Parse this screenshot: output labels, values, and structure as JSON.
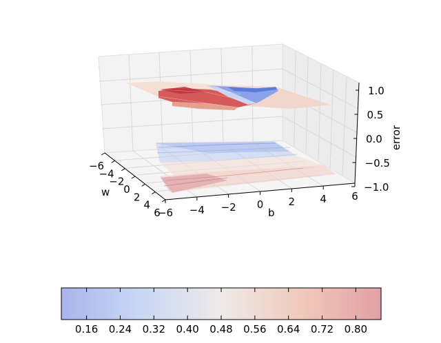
{
  "chart_data": {
    "type": "surface3d",
    "projection": "3d",
    "xlabel": "w",
    "ylabel": "b",
    "zlabel": "error",
    "xlim": [
      -6,
      6
    ],
    "ylim": [
      -6,
      6
    ],
    "zlim": [
      -1.0,
      1.0
    ],
    "x_ticks": [
      "−6",
      "−4",
      "−2",
      "0",
      "2",
      "4",
      "6"
    ],
    "y_ticks": [
      "−6",
      "−4",
      "−2",
      "0",
      "2",
      "4",
      "6"
    ],
    "z_ticks": [
      "1.0",
      "0.5",
      "0.0",
      "−0.5",
      "−1.0"
    ],
    "colormap": "coolwarm",
    "colorbar": {
      "orientation": "horizontal",
      "range": [
        0.1,
        0.86
      ],
      "ticks": [
        "0.16",
        "0.24",
        "0.32",
        "0.40",
        "0.48",
        "0.56",
        "0.64",
        "0.72",
        "0.80"
      ]
    },
    "surface": {
      "w_grid": [
        -6,
        -4,
        -2,
        0,
        2,
        4,
        6
      ],
      "b_grid": [
        -6,
        -4,
        -2,
        0,
        2,
        4,
        6
      ],
      "error": [
        [
          0.4,
          0.38,
          0.3,
          0.18,
          0.15,
          0.14,
          0.14
        ],
        [
          0.42,
          0.42,
          0.36,
          0.25,
          0.18,
          0.15,
          0.15
        ],
        [
          0.46,
          0.48,
          0.46,
          0.4,
          0.3,
          0.22,
          0.2
        ],
        [
          0.5,
          0.52,
          0.52,
          0.5,
          0.46,
          0.42,
          0.42
        ],
        [
          0.52,
          0.58,
          0.62,
          0.58,
          0.52,
          0.48,
          0.46
        ],
        [
          0.55,
          0.76,
          0.82,
          0.7,
          0.55,
          0.5,
          0.48
        ],
        [
          0.58,
          0.86,
          0.86,
          0.76,
          0.58,
          0.52,
          0.5
        ]
      ]
    },
    "contour_projection": "z = -1.0 plane"
  }
}
